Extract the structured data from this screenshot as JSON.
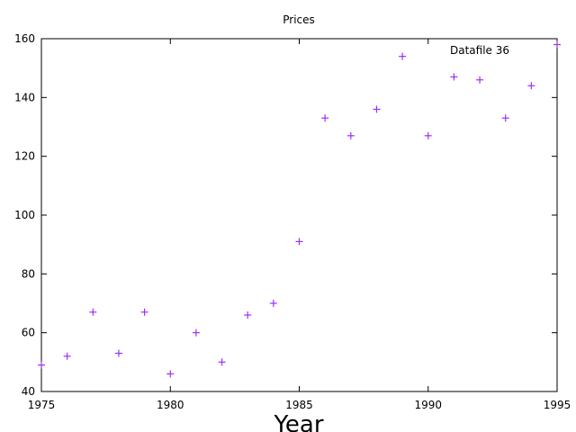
{
  "chart_data": {
    "type": "scatter",
    "title": "Prices",
    "xlabel": "Year",
    "ylabel": "",
    "xlim": [
      1975,
      1995
    ],
    "ylim": [
      40,
      160
    ],
    "xticks": [
      "1975",
      "1980",
      "1985",
      "1990",
      "1995"
    ],
    "yticks": [
      "40",
      "60",
      "80",
      "100",
      "120",
      "140",
      "160"
    ],
    "grid": false,
    "legend_position": "top-right",
    "series": [
      {
        "name": "Datafile 36",
        "color": "#9b30ff",
        "marker": "plus",
        "points": [
          {
            "x": 1975,
            "y": 49
          },
          {
            "x": 1976,
            "y": 52
          },
          {
            "x": 1977,
            "y": 67
          },
          {
            "x": 1978,
            "y": 53
          },
          {
            "x": 1979,
            "y": 67
          },
          {
            "x": 1980,
            "y": 46
          },
          {
            "x": 1981,
            "y": 60
          },
          {
            "x": 1982,
            "y": 50
          },
          {
            "x": 1983,
            "y": 66
          },
          {
            "x": 1984,
            "y": 70
          },
          {
            "x": 1985,
            "y": 91
          },
          {
            "x": 1986,
            "y": 133
          },
          {
            "x": 1987,
            "y": 127
          },
          {
            "x": 1988,
            "y": 136
          },
          {
            "x": 1989,
            "y": 154
          },
          {
            "x": 1990,
            "y": 127
          },
          {
            "x": 1991,
            "y": 147
          },
          {
            "x": 1992,
            "y": 146
          },
          {
            "x": 1993,
            "y": 133
          },
          {
            "x": 1994,
            "y": 144
          },
          {
            "x": 1995,
            "y": 158
          }
        ]
      }
    ]
  }
}
